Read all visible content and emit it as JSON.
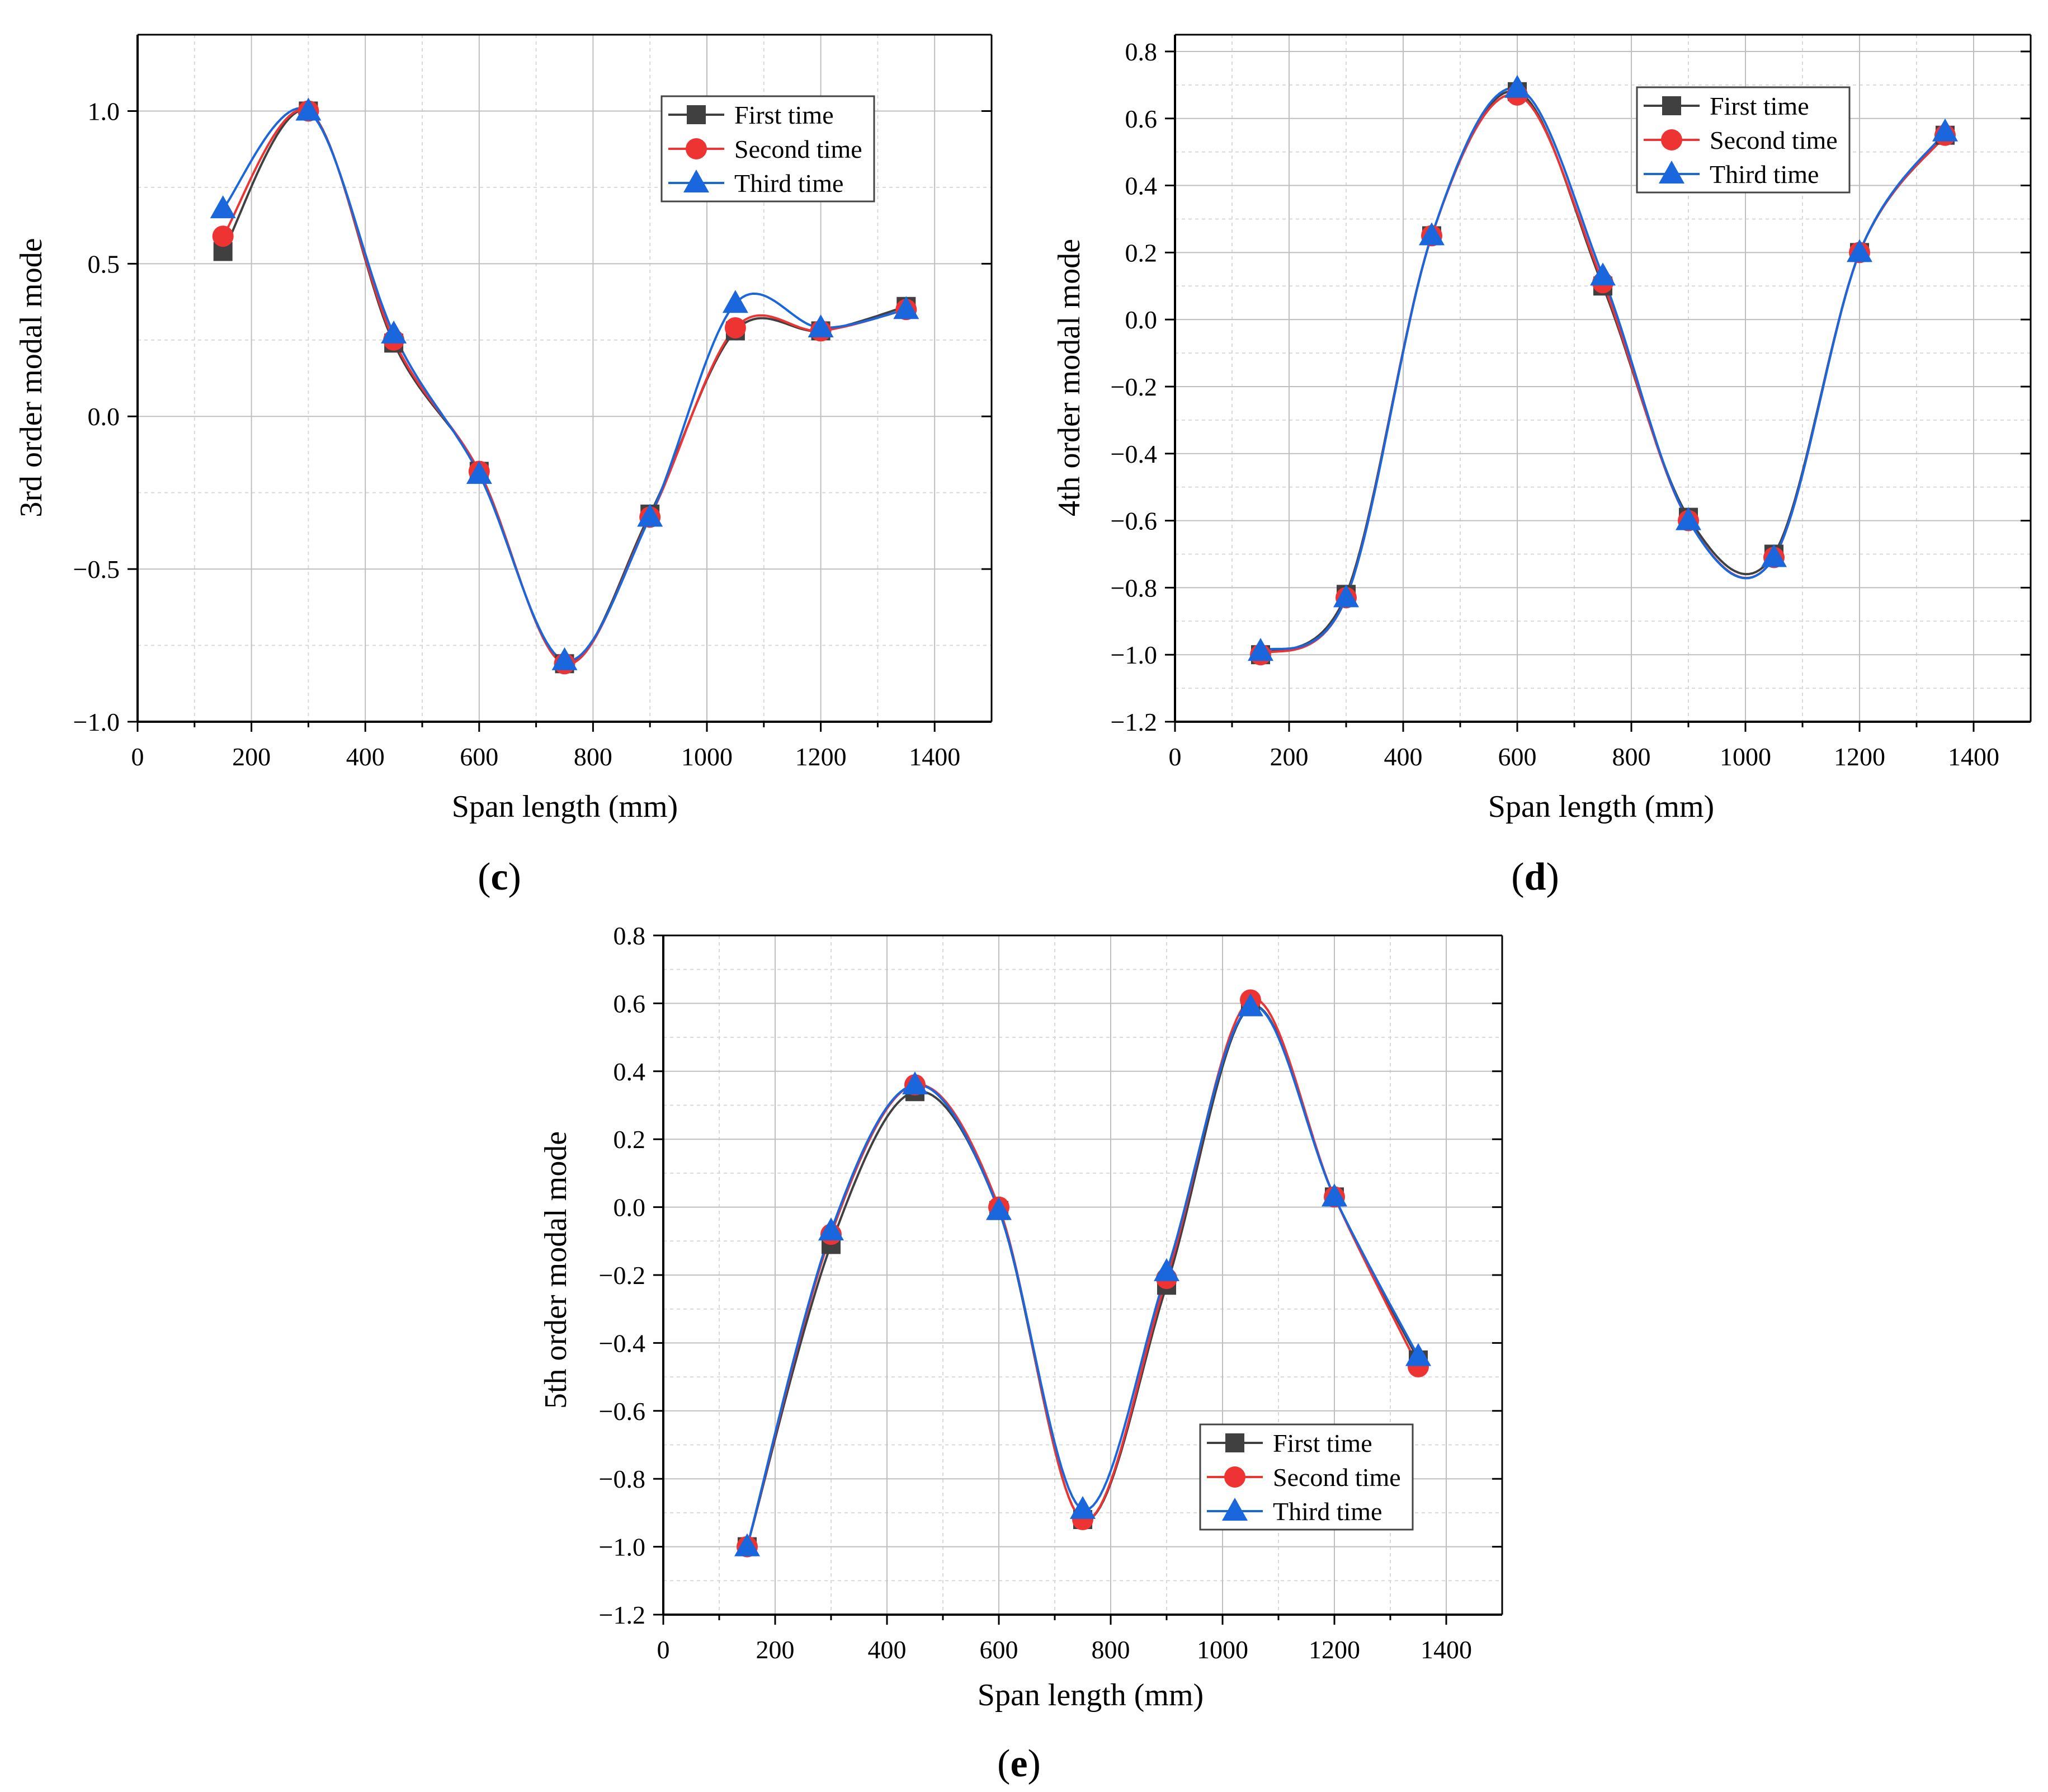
{
  "colors": {
    "first": "#404040",
    "second": "#ee3333",
    "third": "#1a66dd",
    "grid": "#bfbfbf",
    "grid_minor": "#d9d9d9"
  },
  "legend_labels": [
    "First time",
    "Second time",
    "Third time"
  ],
  "panels": {
    "c": {
      "letter_open": "(",
      "letter": "c",
      "letter_close": ")"
    },
    "d": {
      "letter_open": "(",
      "letter": "d",
      "letter_close": ")"
    },
    "e": {
      "letter_open": "(",
      "letter": "e",
      "letter_close": ")"
    }
  },
  "chart_data": [
    {
      "id": "c",
      "type": "line",
      "title": "",
      "xlabel": "Span length (mm)",
      "ylabel": "3rd order modal mode",
      "xlim": [
        0,
        1500
      ],
      "ylim": [
        -1.0,
        1.25
      ],
      "xticks": [
        0,
        200,
        400,
        600,
        800,
        1000,
        1200,
        1400
      ],
      "xtick_labels": [
        "0",
        "200",
        "400",
        "600",
        "800",
        "1000",
        "1200",
        "1400"
      ],
      "yticks": [
        -1.0,
        -0.5,
        0.0,
        0.5,
        1.0
      ],
      "ytick_labels": [
        "−1.0",
        "−0.5",
        "0.0",
        "0.5",
        "1.0"
      ],
      "legend_position": "top-right",
      "x": [
        150,
        300,
        450,
        600,
        750,
        900,
        1050,
        1200,
        1350
      ],
      "series": [
        {
          "name": "First time",
          "marker": "square",
          "values": [
            0.54,
            1.0,
            0.24,
            -0.18,
            -0.81,
            -0.32,
            0.28,
            0.28,
            0.36
          ]
        },
        {
          "name": "Second time",
          "marker": "circle",
          "values": [
            0.59,
            1.0,
            0.25,
            -0.18,
            -0.81,
            -0.33,
            0.29,
            0.28,
            0.35
          ]
        },
        {
          "name": "Third time",
          "marker": "triangle",
          "values": [
            0.68,
            1.0,
            0.27,
            -0.19,
            -0.8,
            -0.33,
            0.37,
            0.29,
            0.35
          ]
        }
      ]
    },
    {
      "id": "d",
      "type": "line",
      "title": "",
      "xlabel": "Span length (mm)",
      "ylabel": "4th order modal mode",
      "xlim": [
        0,
        1500
      ],
      "ylim": [
        -1.2,
        0.85
      ],
      "xticks": [
        0,
        200,
        400,
        600,
        800,
        1000,
        1200,
        1400
      ],
      "xtick_labels": [
        "0",
        "200",
        "400",
        "600",
        "800",
        "1000",
        "1200",
        "1400"
      ],
      "yticks": [
        -1.2,
        -1.0,
        -0.8,
        -0.6,
        -0.4,
        -0.2,
        0.0,
        0.2,
        0.4,
        0.6,
        0.8
      ],
      "ytick_labels": [
        "−1.2",
        "−1.0",
        "−0.8",
        "−0.6",
        "−0.4",
        "−0.2",
        "0.0",
        "0.2",
        "0.4",
        "0.6",
        "0.8"
      ],
      "legend_position": "top-right",
      "x": [
        150,
        300,
        450,
        600,
        750,
        900,
        1050,
        1200,
        1350
      ],
      "series": [
        {
          "name": "First time",
          "marker": "square",
          "values": [
            -1.0,
            -0.82,
            0.25,
            0.68,
            0.1,
            -0.59,
            -0.7,
            0.2,
            0.55
          ]
        },
        {
          "name": "Second time",
          "marker": "circle",
          "values": [
            -1.0,
            -0.83,
            0.25,
            0.67,
            0.11,
            -0.6,
            -0.71,
            0.2,
            0.55
          ]
        },
        {
          "name": "Third time",
          "marker": "triangle",
          "values": [
            -0.99,
            -0.83,
            0.25,
            0.69,
            0.13,
            -0.6,
            -0.71,
            0.2,
            0.56
          ]
        }
      ]
    },
    {
      "id": "e",
      "type": "line",
      "title": "",
      "xlabel": "Span length (mm)",
      "ylabel": "5th order modal mode",
      "xlim": [
        0,
        1500
      ],
      "ylim": [
        -1.2,
        0.8
      ],
      "xticks": [
        0,
        200,
        400,
        600,
        800,
        1000,
        1200,
        1400
      ],
      "xtick_labels": [
        "0",
        "200",
        "400",
        "600",
        "800",
        "1000",
        "1200",
        "1400"
      ],
      "yticks": [
        -1.2,
        -1.0,
        -0.8,
        -0.6,
        -0.4,
        -0.2,
        0.0,
        0.2,
        0.4,
        0.6,
        0.8
      ],
      "ytick_labels": [
        "−1.2",
        "−1.0",
        "−0.8",
        "−0.6",
        "−0.4",
        "−0.2",
        "0.0",
        "0.2",
        "0.4",
        "0.6",
        "0.8"
      ],
      "legend_position": "bottom-right",
      "x": [
        150,
        300,
        450,
        600,
        750,
        900,
        1050,
        1200,
        1350
      ],
      "series": [
        {
          "name": "First time",
          "marker": "square",
          "values": [
            -1.0,
            -0.11,
            0.34,
            -0.01,
            -0.92,
            -0.23,
            0.59,
            0.03,
            -0.45
          ]
        },
        {
          "name": "Second time",
          "marker": "circle",
          "values": [
            -1.0,
            -0.08,
            0.36,
            0.0,
            -0.92,
            -0.21,
            0.61,
            0.03,
            -0.47
          ]
        },
        {
          "name": "Third time",
          "marker": "triangle",
          "values": [
            -1.0,
            -0.07,
            0.36,
            -0.01,
            -0.89,
            -0.19,
            0.59,
            0.03,
            -0.44
          ]
        }
      ]
    }
  ]
}
